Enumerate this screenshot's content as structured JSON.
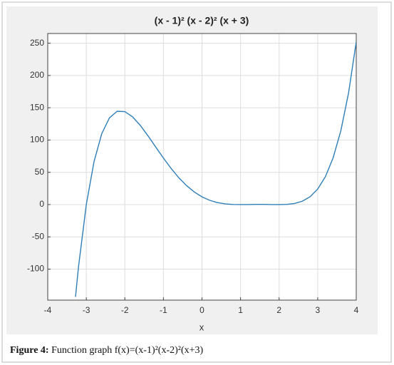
{
  "chart_data": {
    "type": "line",
    "title": "(x - 1)² (x - 2)² (x + 3)",
    "x_label": "x",
    "x": [
      -3.28,
      -3.2,
      -3.0,
      -2.8,
      -2.6,
      -2.4,
      -2.2,
      -2.0,
      -1.8,
      -1.6,
      -1.4,
      -1.2,
      -1.0,
      -0.8,
      -0.6,
      -0.4,
      -0.2,
      0,
      0.2,
      0.4,
      0.6,
      0.8,
      1.0,
      1.2,
      1.4,
      1.6,
      1.8,
      2.0,
      2.2,
      2.4,
      2.6,
      2.8,
      3.0,
      3.2,
      3.4,
      3.6,
      3.8,
      4.0
    ],
    "series": [
      {
        "color": "#2f7fb8",
        "values": [
          -143.0,
          -95.4,
          0,
          66.5,
          109.7,
          134.3,
          144.5,
          144,
          135.9,
          122.7,
          106.5,
          89.2,
          72,
          55.9,
          41.5,
          29.4,
          19.5,
          12,
          6.6,
          3.1,
          1.1,
          0.2,
          0,
          0.1,
          0.3,
          0.3,
          0.1,
          0,
          0.3,
          1.7,
          5.2,
          12.0,
          24,
          43.2,
          72.3,
          114.2,
          172.7,
          252
        ]
      }
    ],
    "xlim": [
      -4,
      4
    ],
    "xticks": [
      -4,
      -3,
      -2,
      -1,
      0,
      1,
      2,
      3,
      4
    ],
    "ylim": [
      -148,
      265
    ],
    "yticks": [
      -100,
      -50,
      0,
      50,
      100,
      150,
      200,
      250
    ],
    "grid": true
  },
  "caption": {
    "label": "Figure 4:",
    "text": "Function graph f(x)=(x-1)²(x-2)²(x+3)"
  }
}
